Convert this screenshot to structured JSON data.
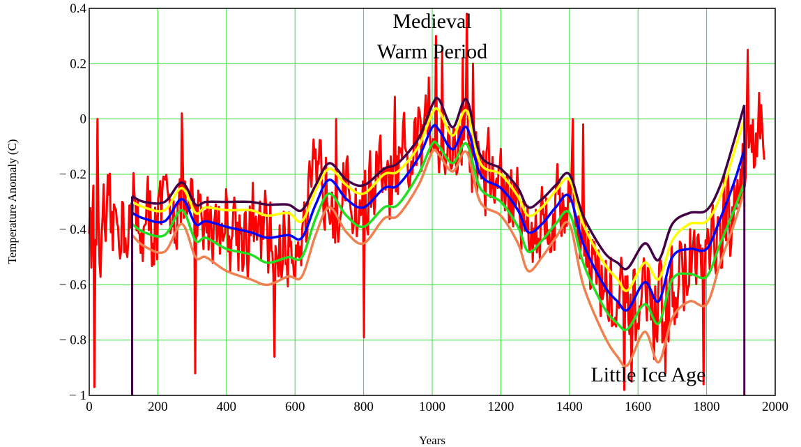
{
  "chart_data": {
    "type": "line",
    "title": "",
    "xlabel": "Years",
    "ylabel": "Temperature Anomaly (C)",
    "xlim": [
      0,
      2000
    ],
    "ylim": [
      -1,
      0.4
    ],
    "grid": true,
    "legend": "none",
    "xticks": [
      {
        "value": 0,
        "label": "0"
      },
      {
        "value": 200,
        "label": "200"
      },
      {
        "value": 400,
        "label": "400"
      },
      {
        "value": 600,
        "label": "600"
      },
      {
        "value": 800,
        "label": "800"
      },
      {
        "value": 1000,
        "label": "1000"
      },
      {
        "value": 1200,
        "label": "1200"
      },
      {
        "value": 1400,
        "label": "1400"
      },
      {
        "value": 1600,
        "label": "1600"
      },
      {
        "value": 1800,
        "label": "1800"
      },
      {
        "value": 2000,
        "label": "2000"
      }
    ],
    "yticks": [
      {
        "value": 0.4,
        "label": "0.4"
      },
      {
        "value": 0.2,
        "label": "0.2"
      },
      {
        "value": 0,
        "label": "0"
      },
      {
        "value": -0.2,
        "label": "− 0.2"
      },
      {
        "value": -0.4,
        "label": "− 0.4"
      },
      {
        "value": -0.6,
        "label": "− 0.6"
      },
      {
        "value": -0.8,
        "label": "− 0.8"
      },
      {
        "value": -1,
        "label": "− 1"
      }
    ],
    "annotations": [
      {
        "id": "medieval-line-1",
        "text": "Medieval",
        "x": 1000,
        "y": 0.33
      },
      {
        "id": "medieval-line-2",
        "text": "Warm Period",
        "x": 1000,
        "y": 0.22
      },
      {
        "id": "little-ice-age",
        "text": "Little Ice Age",
        "x": 1630,
        "y": -0.95
      }
    ],
    "raw_series": {
      "name": "",
      "color": "#ff0000",
      "knots": {
        "x": [
          0,
          30,
          60,
          100,
          140,
          180,
          220,
          260,
          280,
          300,
          340,
          380,
          420,
          460,
          500,
          540,
          560,
          600,
          640,
          680,
          700,
          740,
          780,
          800,
          840,
          880,
          920,
          960,
          1000,
          1020,
          1060,
          1100,
          1120,
          1160,
          1200,
          1240,
          1280,
          1320,
          1360,
          1400,
          1420,
          1460,
          1500,
          1540,
          1580,
          1620,
          1660,
          1700,
          1740,
          1780,
          1800,
          1840,
          1880,
          1910,
          1930,
          1950,
          1970
        ],
        "y": [
          -0.35,
          -0.45,
          -0.4,
          -0.35,
          -0.36,
          -0.38,
          -0.34,
          -0.28,
          -0.33,
          -0.36,
          -0.36,
          -0.37,
          -0.37,
          -0.4,
          -0.42,
          -0.47,
          -0.48,
          -0.44,
          -0.32,
          -0.2,
          -0.22,
          -0.3,
          -0.32,
          -0.3,
          -0.22,
          -0.26,
          -0.2,
          -0.1,
          -0.02,
          -0.04,
          -0.1,
          -0.06,
          -0.12,
          -0.2,
          -0.24,
          -0.3,
          -0.4,
          -0.38,
          -0.32,
          -0.28,
          -0.34,
          -0.5,
          -0.6,
          -0.68,
          -0.72,
          -0.65,
          -0.74,
          -0.62,
          -0.55,
          -0.5,
          -0.52,
          -0.46,
          -0.38,
          -0.15,
          0.02,
          -0.05,
          -0.08
        ]
      },
      "spikes": [
        {
          "x": 15,
          "y": -0.97
        },
        {
          "x": 25,
          "y": 0.0
        },
        {
          "x": 270,
          "y": 0.02
        },
        {
          "x": 310,
          "y": -0.92
        },
        {
          "x": 540,
          "y": -0.86
        },
        {
          "x": 720,
          "y": 0.0
        },
        {
          "x": 800,
          "y": -0.79
        },
        {
          "x": 890,
          "y": 0.08
        },
        {
          "x": 990,
          "y": 0.15
        },
        {
          "x": 1010,
          "y": 0.3
        },
        {
          "x": 1030,
          "y": 0.25
        },
        {
          "x": 1090,
          "y": 0.22
        },
        {
          "x": 1100,
          "y": 0.38
        },
        {
          "x": 1120,
          "y": 0.2
        },
        {
          "x": 1410,
          "y": 0.0
        },
        {
          "x": 1440,
          "y": -0.02
        },
        {
          "x": 1560,
          "y": -0.98
        },
        {
          "x": 1580,
          "y": -0.95
        },
        {
          "x": 1680,
          "y": -0.92
        },
        {
          "x": 1790,
          "y": -0.96
        },
        {
          "x": 1850,
          "y": -0.2
        },
        {
          "x": 1920,
          "y": 0.25
        },
        {
          "x": 1960,
          "y": 0.05
        }
      ]
    },
    "series": [
      {
        "name": "",
        "color": "#440044",
        "x": [
          125,
          160,
          220,
          270,
          310,
          340,
          400,
          470,
          520,
          580,
          620,
          660,
          700,
          750,
          800,
          860,
          900,
          960,
          1000,
          1020,
          1060,
          1100,
          1140,
          1200,
          1250,
          1280,
          1320,
          1360,
          1400,
          1440,
          1500,
          1540,
          1570,
          1620,
          1660,
          1700,
          1750,
          1800,
          1840,
          1880,
          1910
        ],
        "y": [
          -0.28,
          -0.3,
          -0.3,
          -0.23,
          -0.31,
          -0.3,
          -0.3,
          -0.3,
          -0.31,
          -0.31,
          -0.33,
          -0.24,
          -0.16,
          -0.22,
          -0.24,
          -0.18,
          -0.16,
          -0.07,
          0.05,
          0.07,
          -0.03,
          0.07,
          -0.13,
          -0.18,
          -0.25,
          -0.32,
          -0.29,
          -0.24,
          -0.2,
          -0.35,
          -0.48,
          -0.52,
          -0.54,
          -0.45,
          -0.51,
          -0.38,
          -0.34,
          -0.33,
          -0.24,
          -0.08,
          0.05
        ]
      },
      {
        "name": "",
        "color": "#ffff00",
        "x": [
          125,
          160,
          220,
          270,
          310,
          340,
          400,
          470,
          520,
          580,
          620,
          660,
          700,
          750,
          800,
          860,
          900,
          960,
          1000,
          1020,
          1060,
          1100,
          1140,
          1200,
          1250,
          1280,
          1320,
          1360,
          1400,
          1440,
          1500,
          1540,
          1570,
          1620,
          1660,
          1700,
          1750,
          1800,
          1840,
          1880,
          1910
        ],
        "y": [
          -0.3,
          -0.32,
          -0.33,
          -0.25,
          -0.34,
          -0.32,
          -0.33,
          -0.33,
          -0.35,
          -0.34,
          -0.37,
          -0.26,
          -0.18,
          -0.24,
          -0.27,
          -0.2,
          -0.19,
          -0.1,
          0.02,
          0.03,
          -0.06,
          0.03,
          -0.16,
          -0.2,
          -0.28,
          -0.35,
          -0.32,
          -0.26,
          -0.22,
          -0.38,
          -0.52,
          -0.58,
          -0.62,
          -0.52,
          -0.58,
          -0.44,
          -0.38,
          -0.37,
          -0.28,
          -0.12,
          0.0
        ]
      },
      {
        "name": "",
        "color": "#0000ff",
        "x": [
          125,
          160,
          220,
          270,
          310,
          340,
          400,
          470,
          520,
          580,
          620,
          660,
          700,
          750,
          800,
          860,
          900,
          960,
          1000,
          1020,
          1060,
          1100,
          1140,
          1200,
          1250,
          1280,
          1320,
          1360,
          1400,
          1440,
          1500,
          1540,
          1570,
          1620,
          1660,
          1700,
          1750,
          1800,
          1840,
          1880,
          1910
        ],
        "y": [
          -0.34,
          -0.36,
          -0.37,
          -0.29,
          -0.38,
          -0.37,
          -0.39,
          -0.41,
          -0.43,
          -0.42,
          -0.43,
          -0.31,
          -0.22,
          -0.29,
          -0.32,
          -0.25,
          -0.24,
          -0.14,
          -0.03,
          -0.04,
          -0.11,
          -0.03,
          -0.2,
          -0.25,
          -0.33,
          -0.41,
          -0.38,
          -0.32,
          -0.28,
          -0.45,
          -0.6,
          -0.66,
          -0.69,
          -0.59,
          -0.66,
          -0.5,
          -0.47,
          -0.47,
          -0.36,
          -0.23,
          -0.11
        ]
      },
      {
        "name": "",
        "color": "#22dd22",
        "x": [
          125,
          160,
          220,
          270,
          310,
          340,
          400,
          470,
          520,
          580,
          620,
          660,
          700,
          750,
          800,
          860,
          900,
          960,
          1000,
          1020,
          1060,
          1100,
          1140,
          1200,
          1250,
          1280,
          1320,
          1360,
          1400,
          1440,
          1500,
          1540,
          1570,
          1620,
          1660,
          1700,
          1750,
          1800,
          1840,
          1880,
          1910
        ],
        "y": [
          -0.38,
          -0.41,
          -0.42,
          -0.33,
          -0.44,
          -0.43,
          -0.47,
          -0.49,
          -0.52,
          -0.5,
          -0.5,
          -0.36,
          -0.27,
          -0.35,
          -0.39,
          -0.32,
          -0.31,
          -0.2,
          -0.09,
          -0.1,
          -0.16,
          -0.09,
          -0.25,
          -0.3,
          -0.39,
          -0.48,
          -0.44,
          -0.38,
          -0.34,
          -0.52,
          -0.68,
          -0.74,
          -0.76,
          -0.67,
          -0.74,
          -0.58,
          -0.56,
          -0.57,
          -0.45,
          -0.33,
          -0.23
        ]
      },
      {
        "name": "",
        "color": "#f08050",
        "x": [
          125,
          160,
          220,
          270,
          310,
          340,
          400,
          470,
          520,
          580,
          620,
          660,
          700,
          750,
          800,
          860,
          900,
          960,
          1000,
          1020,
          1060,
          1100,
          1140,
          1200,
          1250,
          1280,
          1320,
          1360,
          1400,
          1440,
          1500,
          1540,
          1570,
          1620,
          1660,
          1700,
          1750,
          1800,
          1840,
          1880,
          1910
        ],
        "y": [
          -0.42,
          -0.46,
          -0.48,
          -0.38,
          -0.5,
          -0.5,
          -0.55,
          -0.58,
          -0.6,
          -0.57,
          -0.57,
          -0.42,
          -0.32,
          -0.41,
          -0.45,
          -0.36,
          -0.35,
          -0.24,
          -0.12,
          -0.13,
          -0.19,
          -0.12,
          -0.3,
          -0.35,
          -0.45,
          -0.55,
          -0.5,
          -0.43,
          -0.38,
          -0.6,
          -0.78,
          -0.86,
          -0.89,
          -0.77,
          -0.88,
          -0.72,
          -0.66,
          -0.67,
          -0.52,
          -0.38,
          -0.26
        ]
      }
    ],
    "vertical_markers": [
      {
        "x": 125,
        "y_from": -1,
        "y_to": -0.28,
        "color": "#440044"
      },
      {
        "x": 1910,
        "y_from": -1,
        "y_to": 0.05,
        "color": "#440044"
      }
    ]
  }
}
